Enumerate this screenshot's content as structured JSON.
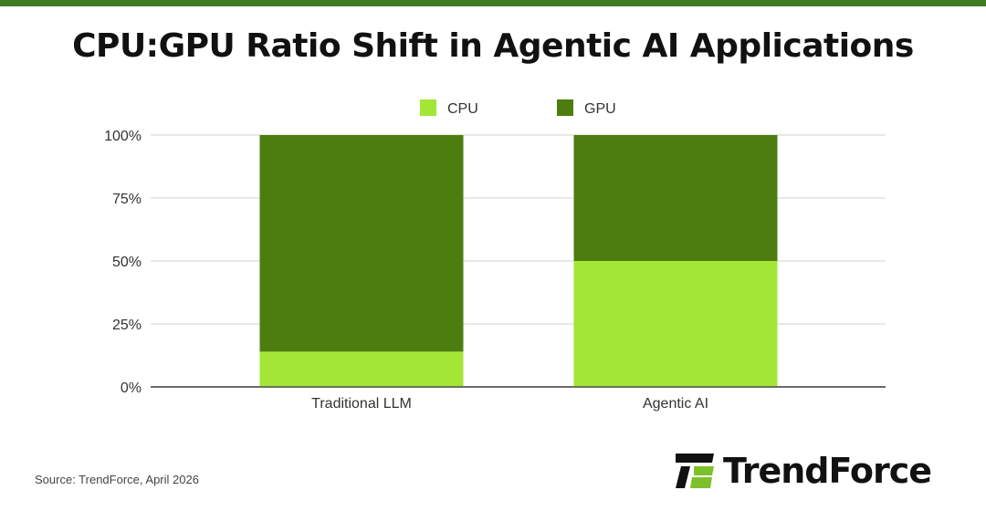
{
  "title": "CPU:GPU Ratio Shift in Agentic AI Applications",
  "source": "Source: TrendForce, April 2026",
  "logo_text": "TrendForce",
  "colors": {
    "cpu": "#a3e635",
    "gpu": "#4d7c0f",
    "bar": "#3f7d20"
  },
  "chart_data": {
    "type": "bar",
    "stacked": true,
    "categories": [
      "Traditional LLM",
      "Agentic AI"
    ],
    "series": [
      {
        "name": "CPU",
        "values": [
          14,
          50
        ]
      },
      {
        "name": "GPU",
        "values": [
          86,
          50
        ]
      }
    ],
    "yticks": [
      "0%",
      "25%",
      "50%",
      "75%",
      "100%"
    ],
    "ylim": [
      0,
      100
    ],
    "legend": "top",
    "grid": true
  }
}
